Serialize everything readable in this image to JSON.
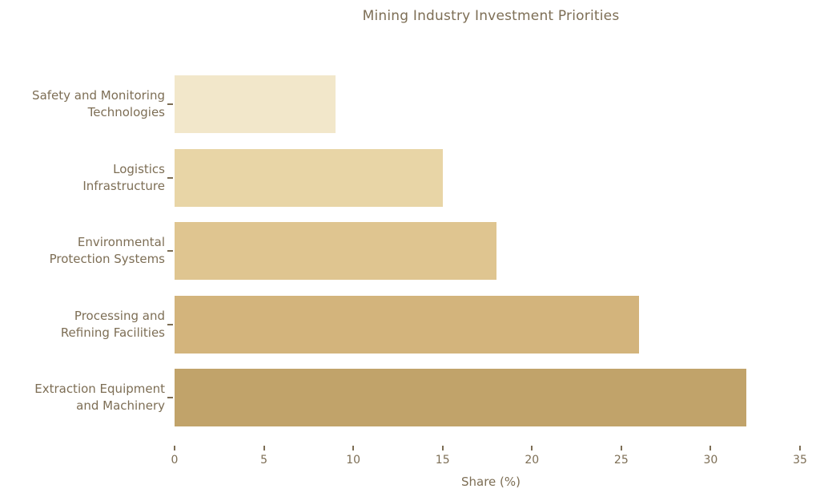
{
  "chart_data": {
    "type": "bar",
    "orientation": "horizontal",
    "title": "Mining Industry Investment Priorities",
    "xlabel": "Share (%)",
    "ylabel": "",
    "categories": [
      "Safety and Monitoring Technologies",
      "Logistics Infrastructure",
      "Environmental Protection Systems",
      "Processing and Refining Facilities",
      "Extraction Equipment and Machinery"
    ],
    "category_label_lines": [
      [
        "Safety and Monitoring",
        "Technologies"
      ],
      [
        "Logistics",
        "Infrastructure"
      ],
      [
        "Environmental",
        "Protection Systems"
      ],
      [
        "Processing and",
        "Refining Facilities"
      ],
      [
        "Extraction Equipment",
        "and Machinery"
      ]
    ],
    "values": [
      9,
      15,
      18,
      26,
      32
    ],
    "xlim": [
      0,
      35
    ],
    "xticks": [
      0,
      5,
      10,
      15,
      20,
      25,
      30,
      35
    ],
    "grid": false,
    "legend": "none",
    "bar_colors": [
      "#f2e7ca",
      "#e8d5a6",
      "#dfc590",
      "#d3b47c",
      "#c1a36a"
    ],
    "text_color": "#7d6e55",
    "tick_color": "#7d6e55",
    "background_color": "#ffffff"
  }
}
